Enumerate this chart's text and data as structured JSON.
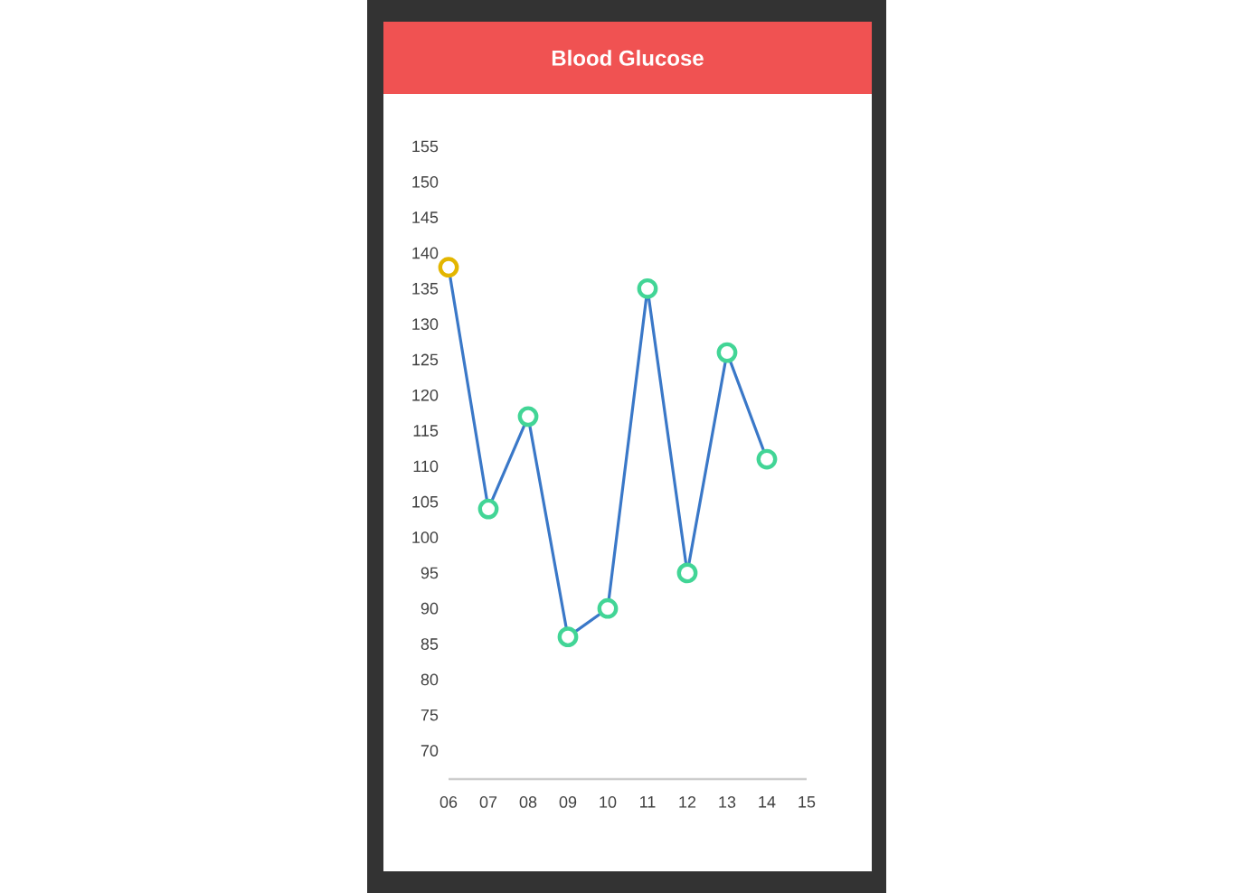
{
  "chart_data": {
    "type": "line",
    "title": "Blood Glucose",
    "categories": [
      "06",
      "07",
      "08",
      "09",
      "10",
      "11",
      "12",
      "13",
      "14",
      "15"
    ],
    "series": [
      {
        "color": "#3a78c8",
        "values": [
          138,
          104,
          117,
          86,
          90,
          135,
          95,
          126,
          111,
          null
        ],
        "colors": [
          "#e3b600",
          "#42d596",
          "#42d596",
          "#42d596",
          "#42d596",
          "#42d596",
          "#42d596",
          "#42d596",
          "#42d596",
          null
        ]
      }
    ],
    "ylim": [
      66,
      155
    ],
    "yticks": [
      70,
      75,
      80,
      85,
      90,
      95,
      100,
      105,
      110,
      115,
      120,
      125,
      130,
      135,
      140,
      145,
      150,
      155
    ],
    "grid": false,
    "marker": "circle",
    "line_style": "solid"
  }
}
